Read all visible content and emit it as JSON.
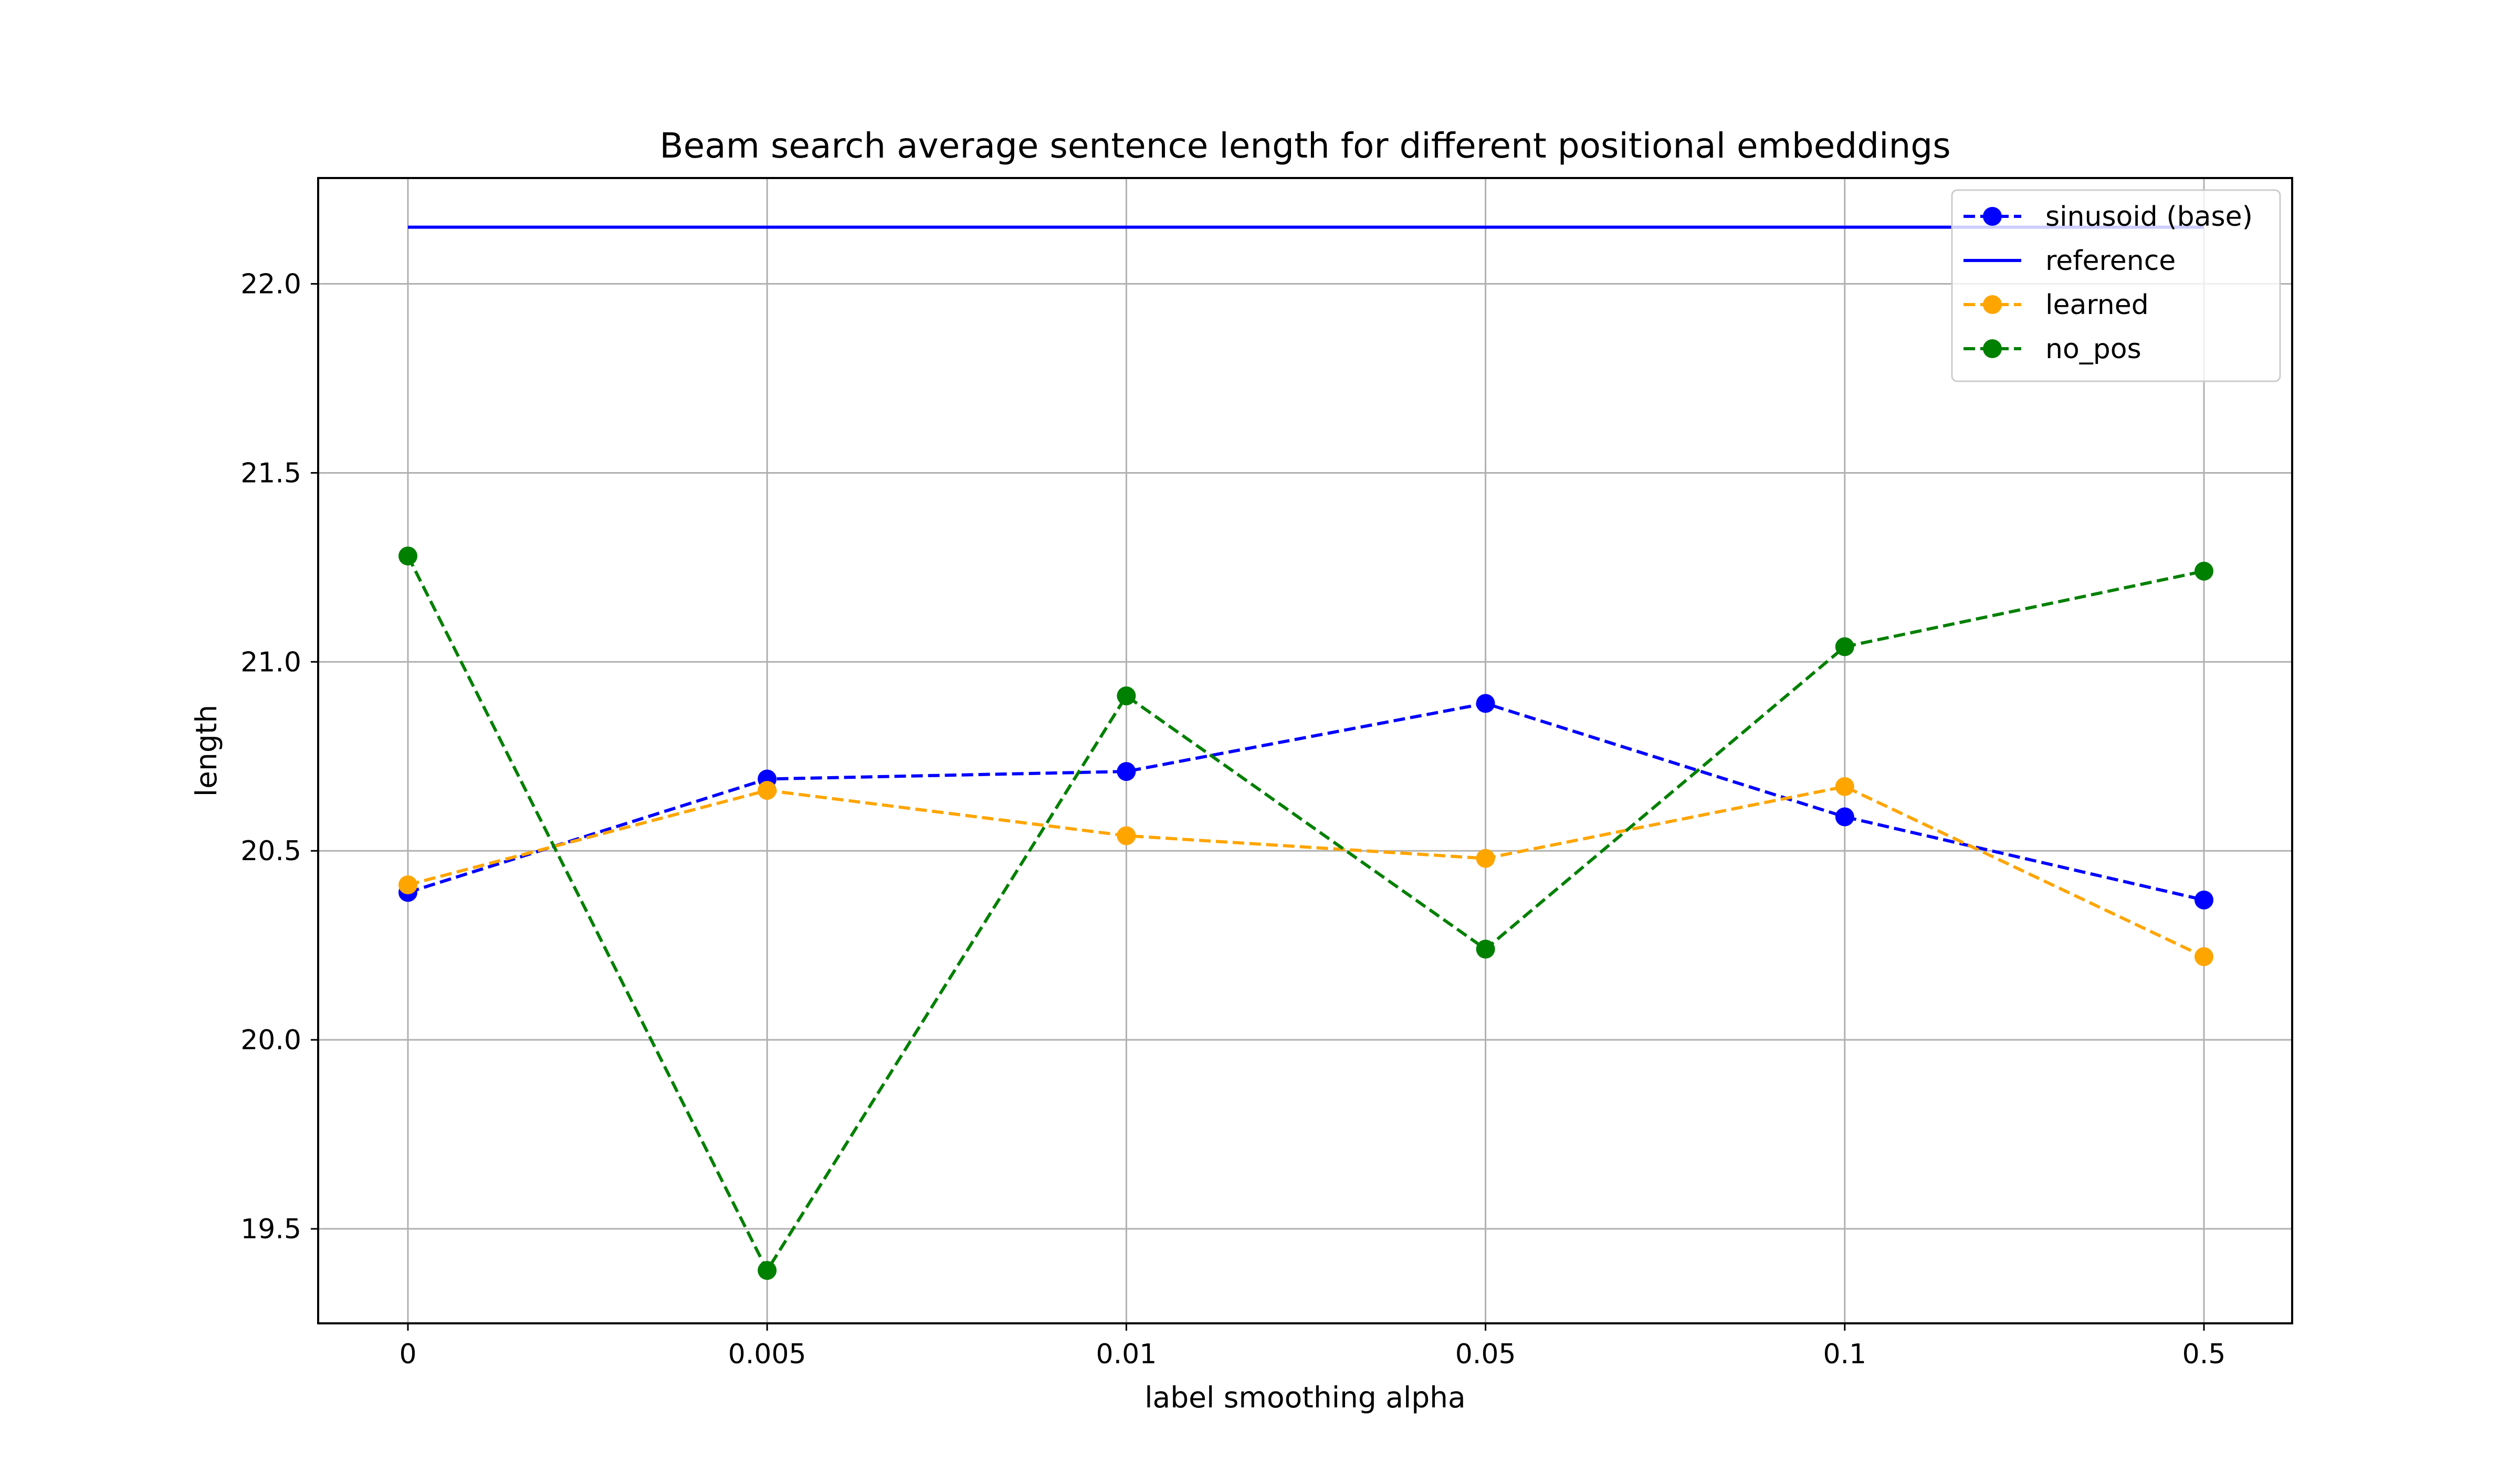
{
  "chart_data": {
    "type": "line",
    "title": "Beam search average sentence length for different positional embeddings",
    "xlabel": "label smoothing alpha",
    "ylabel": "length",
    "categories": [
      "0",
      "0.005",
      "0.01",
      "0.05",
      "0.1",
      "0.5"
    ],
    "ylim": [
      19.25,
      22.28
    ],
    "yticks": [
      "19.5",
      "20.0",
      "20.5",
      "21.0",
      "21.5",
      "22.0"
    ],
    "grid": true,
    "legend_position": "top-right",
    "series": [
      {
        "name": "sinusoid (base)",
        "style": "dashed-marker",
        "color": "#0000ff",
        "values": [
          20.39,
          20.69,
          20.71,
          20.89,
          20.59,
          20.37
        ]
      },
      {
        "name": "reference",
        "style": "solid",
        "color": "#0000ff",
        "values": [
          22.15,
          22.15,
          22.15,
          22.15,
          22.15,
          22.15
        ]
      },
      {
        "name": "learned",
        "style": "dashed-marker",
        "color": "#ffa500",
        "values": [
          20.41,
          20.66,
          20.54,
          20.48,
          20.67,
          20.22
        ]
      },
      {
        "name": "no_pos",
        "style": "dashed-marker",
        "color": "#008000",
        "values": [
          21.28,
          19.39,
          20.91,
          20.24,
          21.04,
          21.24
        ]
      }
    ]
  }
}
